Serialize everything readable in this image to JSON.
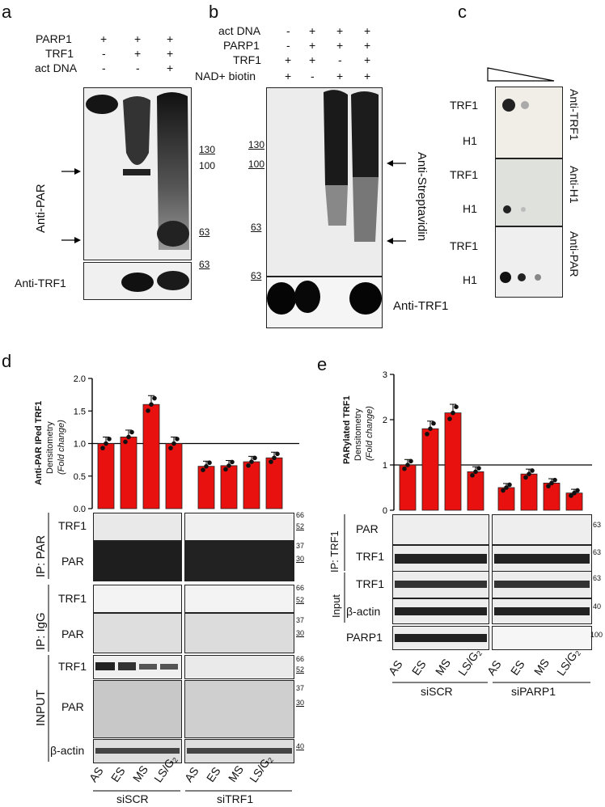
{
  "letters": {
    "a": "a",
    "b": "b",
    "c": "c",
    "d": "d",
    "e": "e"
  },
  "panel_a": {
    "rows": [
      {
        "label": "PARP1",
        "v": [
          "+",
          "+",
          "+"
        ]
      },
      {
        "label": "TRF1",
        "v": [
          "-",
          "+",
          "+"
        ]
      },
      {
        "label": "act DNA",
        "v": [
          "-",
          "-",
          "+"
        ]
      }
    ],
    "side_label": "Anti-PAR",
    "bottom_label": "Anti-TRF1",
    "mw": [
      "130",
      "100",
      "63",
      "63"
    ]
  },
  "panel_b": {
    "rows": [
      {
        "label": "act DNA",
        "v": [
          "-",
          "+",
          "+",
          "+"
        ]
      },
      {
        "label": "PARP1",
        "v": [
          "-",
          "+",
          "+",
          "+"
        ]
      },
      {
        "label": "TRF1",
        "v": [
          "+",
          "+",
          "-",
          "+"
        ]
      },
      {
        "label": "NAD+ biotin",
        "v": [
          "+",
          "-",
          "+",
          "+"
        ]
      }
    ],
    "side_label": "Anti-Streptavidin",
    "bottom_label": "Anti-TRF1",
    "mw": [
      "130",
      "100",
      "63",
      "63"
    ]
  },
  "panel_c": {
    "labels": [
      "TRF1",
      "H1",
      "TRF1",
      "H1",
      "TRF1",
      "H1"
    ],
    "side": [
      "Anti-TRF1",
      "Anti-H1",
      "Anti-PAR"
    ]
  },
  "panel_d": {
    "ylabel_bold": "Anti-PAR IPed TRF1",
    "ylabel": "Densitometry",
    "ylabel_it": "(Fold change)",
    "yticks": [
      "0.0",
      "0.5",
      "1.0",
      "1.5",
      "2.0"
    ],
    "chart_data": {
      "type": "bar",
      "categories": [
        "AS",
        "ES",
        "MS",
        "LS/G2",
        "AS",
        "ES",
        "MS",
        "LS/G2"
      ],
      "values": [
        1.0,
        1.1,
        1.6,
        1.0,
        0.65,
        0.66,
        0.72,
        0.78
      ],
      "ylim": [
        0,
        2.0
      ],
      "reference_line": 1.0
    },
    "blot_labels": [
      "TRF1",
      "PAR",
      "TRF1",
      "PAR",
      "TRF1",
      "PAR",
      "β-actin"
    ],
    "groups": [
      "IP: PAR",
      "IP: IgG",
      "INPUT"
    ],
    "mw": [
      "66",
      "52",
      "37",
      "30",
      "66",
      "52",
      "37",
      "30",
      "66",
      "52",
      "37",
      "30",
      "40"
    ],
    "lanes": [
      "AS",
      "ES",
      "MS",
      "LS/G"
    ],
    "lane_sub": "2",
    "conditions": [
      "siSCR",
      "siTRF1"
    ]
  },
  "panel_e": {
    "ylabel_bold": "PARylated TRF1",
    "ylabel": "Densitometry",
    "ylabel_it": "(Fold change)",
    "yticks": [
      "0",
      "1",
      "2",
      "3"
    ],
    "chart_data": {
      "type": "bar",
      "categories": [
        "AS",
        "ES",
        "MS",
        "LS/G2",
        "AS",
        "ES",
        "MS",
        "LS/G2"
      ],
      "values": [
        1.0,
        1.8,
        2.15,
        0.85,
        0.5,
        0.8,
        0.6,
        0.38
      ],
      "ylim": [
        0,
        3
      ],
      "reference_line": 1.0
    },
    "blot_labels": [
      "PAR",
      "TRF1",
      "TRF1",
      "β-actin",
      "PARP1"
    ],
    "groups": [
      "IP: TRF1",
      "Input"
    ],
    "mw": [
      "63",
      "63",
      "63",
      "40",
      "100"
    ],
    "lanes": [
      "AS",
      "ES",
      "MS",
      "LS/G"
    ],
    "lane_sub": "2",
    "conditions": [
      "siSCR",
      "siPARP1"
    ]
  }
}
